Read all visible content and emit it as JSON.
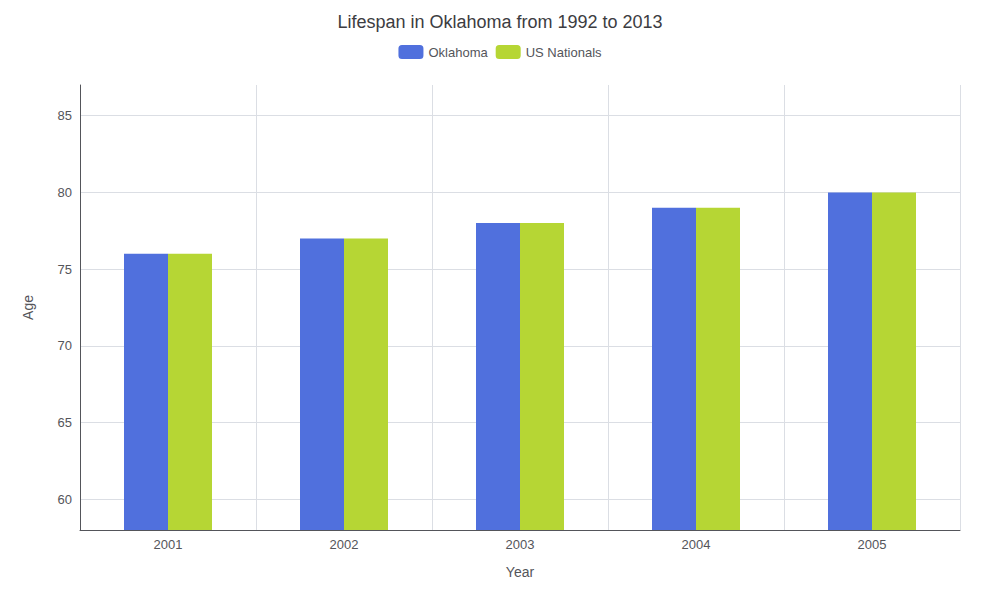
{
  "chart_data": {
    "type": "bar",
    "title": "Lifespan in Oklahoma from 1992 to 2013",
    "xlabel": "Year",
    "ylabel": "Age",
    "categories": [
      "2001",
      "2002",
      "2003",
      "2004",
      "2005"
    ],
    "series": [
      {
        "name": "Oklahoma",
        "values": [
          76,
          77,
          78,
          79,
          80
        ]
      },
      {
        "name": "US Nationals",
        "values": [
          76,
          77,
          78,
          79,
          80
        ]
      }
    ],
    "ylim": [
      58,
      87
    ],
    "yticks": [
      60,
      65,
      70,
      75,
      80,
      85
    ],
    "grid": true,
    "legend": "top"
  }
}
